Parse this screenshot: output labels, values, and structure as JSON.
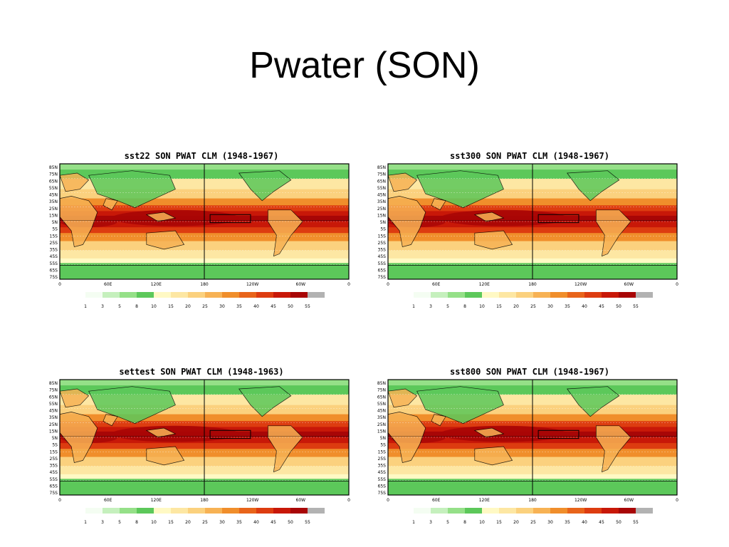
{
  "slide": {
    "title": "Pwater (SON)"
  },
  "colors": {
    "scale": [
      "#f4fdf2",
      "#c5f0bd",
      "#95e088",
      "#5cc85a",
      "#fff9c4",
      "#fde7a3",
      "#fbd17e",
      "#f7b254",
      "#f08e2b",
      "#e8641a",
      "#dd3c10",
      "#c81808",
      "#a80606",
      "#b2b2b2"
    ]
  },
  "colorbar": {
    "labels": [
      "1",
      "3",
      "5",
      "8",
      "10",
      "15",
      "20",
      "25",
      "30",
      "35",
      "40",
      "45",
      "50",
      "55"
    ]
  },
  "axes": {
    "lat_labels": [
      "85N",
      "75N",
      "65N",
      "55N",
      "45N",
      "35N",
      "25N",
      "15N",
      "5N",
      "5S",
      "15S",
      "25S",
      "35S",
      "45S",
      "55S",
      "65S",
      "75S"
    ],
    "lon_labels": [
      "0",
      "60E",
      "120E",
      "180",
      "120W",
      "60W",
      "0"
    ]
  },
  "panels": [
    {
      "title": "sst22 SON PWAT CLM (1948-1967)"
    },
    {
      "title": "sst300 SON PWAT CLM (1948-1967)"
    },
    {
      "title": "settest SON PWAT CLM (1948-1963)"
    },
    {
      "title": "sst800 SON PWAT CLM (1948-1967)"
    }
  ]
}
